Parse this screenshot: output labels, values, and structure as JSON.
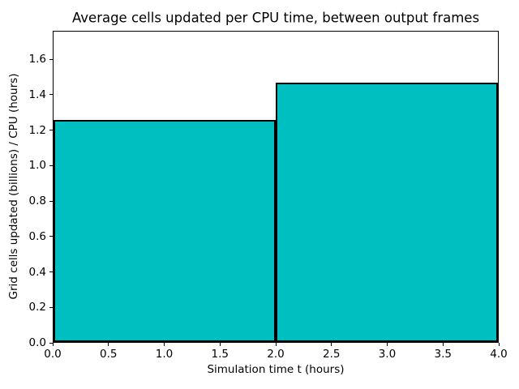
{
  "chart_data": {
    "type": "bar",
    "title": "Average cells updated per CPU time, between output frames",
    "xlabel": "Simulation time t (hours)",
    "ylabel": "Grid cells updated (billions) / CPU (hours)",
    "bars": [
      {
        "x_start": 0.0,
        "x_end": 2.0,
        "value": 1.26
      },
      {
        "x_start": 2.0,
        "x_end": 4.0,
        "value": 1.47
      }
    ],
    "xlim": [
      0.0,
      4.0
    ],
    "ylim": [
      0.0,
      1.76
    ],
    "xticks": [
      0.0,
      0.5,
      1.0,
      1.5,
      2.0,
      2.5,
      3.0,
      3.5,
      4.0
    ],
    "yticks": [
      0.0,
      0.2,
      0.4,
      0.6,
      0.8,
      1.0,
      1.2,
      1.4,
      1.6
    ],
    "tick_label_decimals": 1,
    "bar_fill_color": "#00bfc0",
    "bar_edge_color": "#000000",
    "grid": false,
    "legend_position": "none"
  }
}
